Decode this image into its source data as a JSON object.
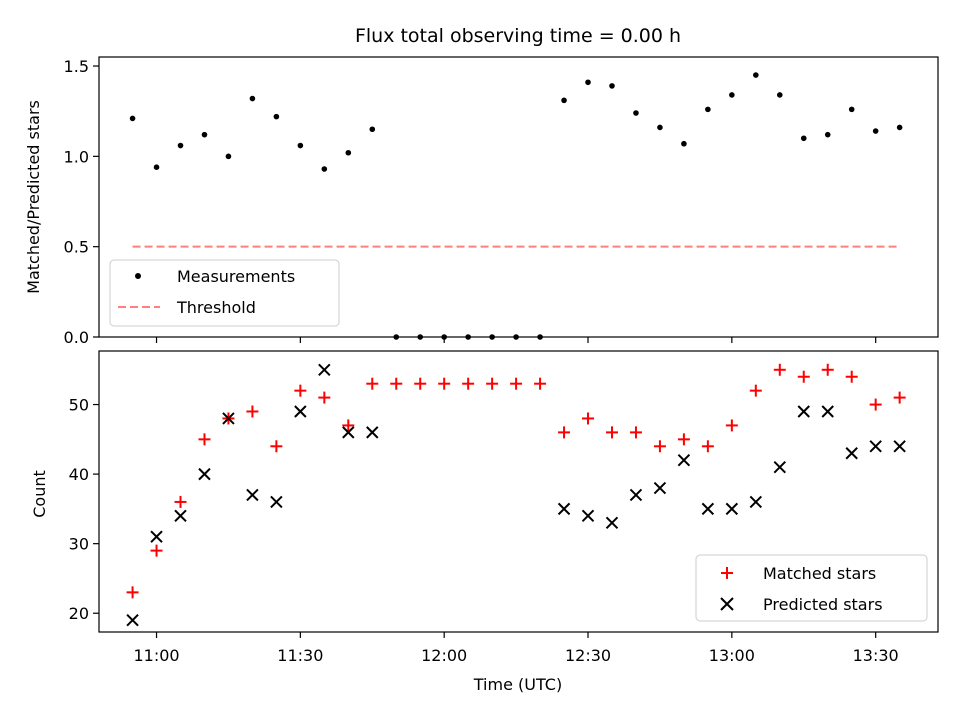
{
  "chart_data": [
    {
      "type": "scatter",
      "title": "Flux total observing time = 0.00 h",
      "ylabel": "Matched/Predicted stars",
      "ylim": [
        0,
        1.55
      ],
      "yticks": [
        0.0,
        0.5,
        1.0,
        1.5
      ],
      "ytick_labels": [
        "0.0",
        "0.5",
        "1.0",
        "1.5"
      ],
      "series": [
        {
          "name": "Measurements",
          "marker": "dot",
          "color": "#000000",
          "x": [
            "10:55",
            "11:00",
            "11:05",
            "11:10",
            "11:15",
            "11:20",
            "11:25",
            "11:30",
            "11:35",
            "11:40",
            "11:45",
            "11:50",
            "11:55",
            "12:00",
            "12:05",
            "12:10",
            "12:15",
            "12:20",
            "12:25",
            "12:30",
            "12:35",
            "12:40",
            "12:45",
            "12:50",
            "12:55",
            "13:00",
            "13:05",
            "13:10",
            "13:15",
            "13:20",
            "13:25",
            "13:30",
            "13:35"
          ],
          "values": [
            1.21,
            0.94,
            1.06,
            1.12,
            1.0,
            1.32,
            1.22,
            1.06,
            0.93,
            1.02,
            1.15,
            0.0,
            0.0,
            0.0,
            0.0,
            0.0,
            0.0,
            0.0,
            1.31,
            1.41,
            1.39,
            1.24,
            1.16,
            1.07,
            1.26,
            1.34,
            1.45,
            1.34,
            1.1,
            1.12,
            1.26,
            1.14,
            1.16
          ]
        },
        {
          "name": "Threshold",
          "type": "line",
          "style": "dashed",
          "color": "#ff7f7f",
          "x": [
            "10:55",
            "13:35"
          ],
          "values": [
            0.5,
            0.5
          ]
        }
      ],
      "legend": "lower-left",
      "grid": false
    },
    {
      "type": "scatter",
      "xlabel": "Time (UTC)",
      "ylabel": "Count",
      "ylim": [
        17.3,
        57.7
      ],
      "yticks": [
        20,
        30,
        40,
        50
      ],
      "ytick_labels": [
        "20",
        "30",
        "40",
        "50"
      ],
      "xlim": [
        "10:48",
        "13:43"
      ],
      "xticks": [
        "11:00",
        "11:30",
        "12:00",
        "12:30",
        "13:00",
        "13:30"
      ],
      "series": [
        {
          "name": "Matched stars",
          "marker": "+",
          "color": "#ff0000",
          "x": [
            "10:55",
            "11:00",
            "11:05",
            "11:10",
            "11:15",
            "11:20",
            "11:25",
            "11:30",
            "11:35",
            "11:40",
            "11:45",
            "11:50",
            "11:55",
            "12:00",
            "12:05",
            "12:10",
            "12:15",
            "12:20",
            "12:25",
            "12:30",
            "12:35",
            "12:40",
            "12:45",
            "12:50",
            "12:55",
            "13:00",
            "13:05",
            "13:10",
            "13:15",
            "13:20",
            "13:25",
            "13:30",
            "13:35"
          ],
          "values": [
            23,
            29,
            36,
            45,
            48,
            49,
            44,
            52,
            51,
            47,
            53,
            53,
            53,
            53,
            53,
            53,
            53,
            53,
            46,
            48,
            46,
            46,
            44,
            45,
            44,
            47,
            52,
            55,
            54,
            55,
            54,
            50,
            51
          ]
        },
        {
          "name": "Predicted stars",
          "marker": "x",
          "color": "#000000",
          "x": [
            "10:55",
            "11:00",
            "11:05",
            "11:10",
            "11:15",
            "11:20",
            "11:25",
            "11:30",
            "11:35",
            "11:40",
            "11:45",
            "12:25",
            "12:30",
            "12:35",
            "12:40",
            "12:45",
            "12:50",
            "12:55",
            "13:00",
            "13:05",
            "13:10",
            "13:15",
            "13:20",
            "13:25",
            "13:30",
            "13:35"
          ],
          "values": [
            19,
            31,
            34,
            40,
            48,
            37,
            36,
            49,
            55,
            46,
            46,
            35,
            34,
            33,
            37,
            38,
            42,
            35,
            35,
            36,
            41,
            49,
            49,
            43,
            44,
            44
          ]
        }
      ],
      "legend": "lower-right",
      "grid": false
    }
  ]
}
